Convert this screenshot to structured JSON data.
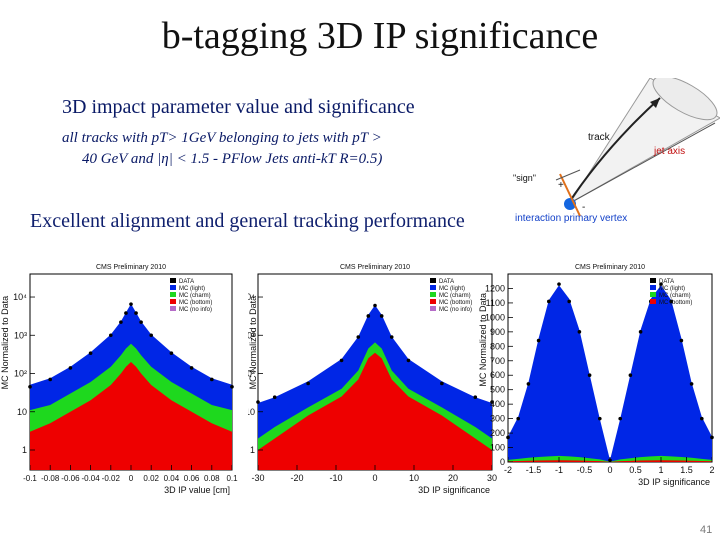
{
  "slide": {
    "title": "b-tagging 3D IP significance",
    "subtitle": "3D impact parameter value and significance",
    "tracks_line1": "all tracks with pT> 1GeV belonging to jets with pT >",
    "tracks_line2": "40 GeV and |η| < 1.5 - PFlow Jets anti-kT R=0.5)",
    "highlight": "Excellent alignment and general tracking performance",
    "page_number": "41"
  },
  "diagram": {
    "track_label": "track",
    "jet_axis_label": "jet axis",
    "sign_label": "\"sign\"",
    "plus_label": "+",
    "minus_label": "-",
    "vertex_label": "interaction primary vertex"
  },
  "colors": {
    "data": "#000000",
    "mc_light": "#0026e6",
    "mc_charm": "#1ed81e",
    "mc_bottom": "#ee0000",
    "text_blue": "#0a1a66"
  },
  "chart_data": [
    {
      "type": "area",
      "title": "CMS Preliminary 2010",
      "xlabel": "3D IP value [cm]",
      "ylabel": "MC Normalized to Data",
      "y_scale": "log",
      "xlim": [
        -0.1,
        0.1
      ],
      "ylim": [
        0.3,
        40000
      ],
      "xticks": [
        "-0.1",
        "-0.08",
        "-0.06",
        "-0.04",
        "-0.02",
        "0",
        "0.02",
        "0.04",
        "0.06",
        "0.08",
        "0.1"
      ],
      "yticks": [
        "1",
        "10",
        "10²",
        "10³",
        "10⁴"
      ],
      "legend": [
        "DATA",
        "MC (light)",
        "MC (charm)",
        "MC (bottom)",
        "MC (no info)"
      ],
      "legend_position": "top-right",
      "x": [
        -0.1,
        -0.08,
        -0.06,
        -0.04,
        -0.02,
        -0.01,
        -0.005,
        0,
        0.005,
        0.01,
        0.02,
        0.04,
        0.06,
        0.08,
        0.1
      ],
      "series": [
        {
          "name": "MC (light)",
          "values": [
            40,
            60,
            120,
            300,
            900,
            2000,
            3500,
            6000,
            3500,
            2000,
            900,
            300,
            120,
            60,
            40
          ]
        },
        {
          "name": "MC (charm)",
          "values": [
            8,
            10,
            20,
            40,
            100,
            200,
            300,
            400,
            300,
            200,
            100,
            40,
            20,
            10,
            8
          ]
        },
        {
          "name": "MC (bottom)",
          "values": [
            3,
            5,
            10,
            20,
            50,
            100,
            150,
            200,
            150,
            100,
            50,
            20,
            10,
            5,
            3
          ]
        },
        {
          "name": "DATA",
          "values": [
            45,
            70,
            140,
            340,
            1000,
            2200,
            3800,
            6500,
            3800,
            2200,
            1000,
            340,
            140,
            70,
            45
          ]
        }
      ]
    },
    {
      "type": "area",
      "title": "CMS Preliminary 2010",
      "xlabel": "3D IP significance",
      "ylabel": "MC Normalized to Data",
      "y_scale": "log",
      "xlim": [
        -35,
        35
      ],
      "ylim": [
        0.3,
        40000
      ],
      "xticks": [
        "-30",
        "-20",
        "-10",
        "0",
        "10",
        "20",
        "30"
      ],
      "yticks": [
        "1",
        "10",
        "10²",
        "10³",
        "10⁴"
      ],
      "legend": [
        "DATA",
        "MC (light)",
        "MC (charm)",
        "MC (bottom)",
        "MC (no info)"
      ],
      "legend_position": "top-right",
      "x": [
        -35,
        -30,
        -20,
        -10,
        -5,
        -2,
        0,
        2,
        5,
        10,
        20,
        30,
        35
      ],
      "series": [
        {
          "name": "MC (light)",
          "values": [
            15,
            20,
            50,
            200,
            800,
            3000,
            5500,
            3000,
            800,
            200,
            50,
            20,
            15
          ]
        },
        {
          "name": "MC (charm)",
          "values": [
            1,
            2,
            5,
            15,
            50,
            200,
            300,
            200,
            50,
            15,
            5,
            2,
            1
          ]
        },
        {
          "name": "MC (bottom)",
          "values": [
            1,
            2,
            8,
            25,
            70,
            250,
            350,
            250,
            70,
            25,
            8,
            2,
            1
          ]
        },
        {
          "name": "DATA",
          "values": [
            18,
            24,
            55,
            220,
            900,
            3200,
            6000,
            3200,
            900,
            220,
            55,
            24,
            18
          ]
        }
      ]
    },
    {
      "type": "area",
      "title": "CMS Preliminary 2010",
      "xlabel": "3D IP significance",
      "ylabel": "MC Normalized to Data",
      "y_scale": "linear",
      "xlim": [
        -2,
        2
      ],
      "ylim": [
        0,
        1300
      ],
      "xticks": [
        "-2",
        "-1.5",
        "-1",
        "-0.5",
        "0",
        "0.5",
        "1",
        "1.5",
        "2"
      ],
      "yticks": [
        "0",
        "100",
        "200",
        "300",
        "400",
        "500",
        "600",
        "700",
        "800",
        "900",
        "1000",
        "1100",
        "1200"
      ],
      "legend": [
        "DATA",
        "MC (light)",
        "MC (charm)",
        "MC (bottom)"
      ],
      "legend_position": "top-right",
      "x": [
        -2,
        -1.8,
        -1.6,
        -1.4,
        -1.2,
        -1.0,
        -0.8,
        -0.6,
        -0.4,
        -0.2,
        0,
        0.2,
        0.4,
        0.6,
        0.8,
        1.0,
        1.2,
        1.4,
        1.6,
        1.8,
        2
      ],
      "series": [
        {
          "name": "MC (light)",
          "values": [
            160,
            290,
            520,
            820,
            1080,
            1180,
            1090,
            880,
            580,
            280,
            10,
            280,
            580,
            880,
            1090,
            1180,
            1080,
            820,
            520,
            290,
            160
          ]
        },
        {
          "name": "MC (charm)",
          "values": [
            10,
            15,
            20,
            25,
            28,
            30,
            28,
            24,
            18,
            12,
            2,
            12,
            18,
            24,
            28,
            30,
            28,
            25,
            20,
            15,
            10
          ]
        },
        {
          "name": "MC (bottom)",
          "values": [
            5,
            7,
            9,
            10,
            11,
            12,
            11,
            10,
            8,
            6,
            1,
            6,
            8,
            10,
            11,
            12,
            11,
            10,
            9,
            7,
            5
          ]
        },
        {
          "name": "DATA",
          "values": [
            170,
            300,
            540,
            840,
            1110,
            1230,
            1110,
            900,
            600,
            300,
            12,
            300,
            600,
            900,
            1110,
            1230,
            1110,
            840,
            540,
            300,
            170
          ]
        }
      ]
    }
  ]
}
